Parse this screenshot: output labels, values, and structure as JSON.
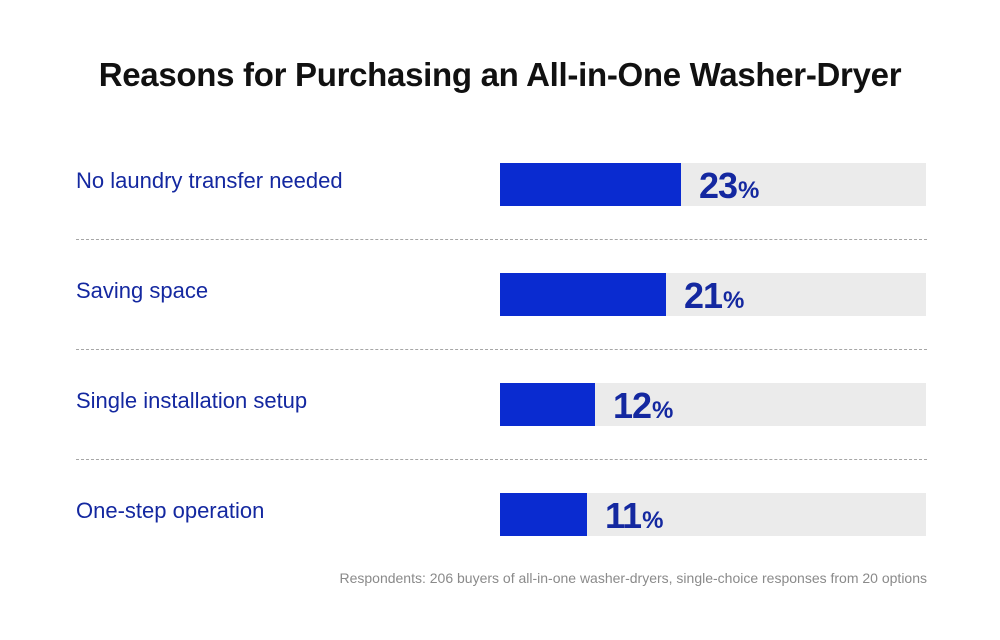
{
  "chart_data": {
    "type": "bar",
    "orientation": "horizontal",
    "title": "Reasons for Purchasing an All-in-One Washer-Dryer",
    "categories": [
      "No laundry transfer needed",
      "Saving space",
      "Single installation setup",
      "One-step operation"
    ],
    "values": [
      23,
      21,
      12,
      11
    ],
    "value_suffix": "%",
    "xlim": [
      0,
      54
    ],
    "grid": false,
    "footnote": "Respondents: 206 buyers of all-in-one washer-dryers, single-choice responses from 20 options"
  },
  "colors": {
    "bar": "#0a2bd0",
    "track": "#ebebeb",
    "label": "#1428a0",
    "title": "#111111",
    "footnote": "#8a8a8a",
    "divider": "#a6a6a6"
  }
}
